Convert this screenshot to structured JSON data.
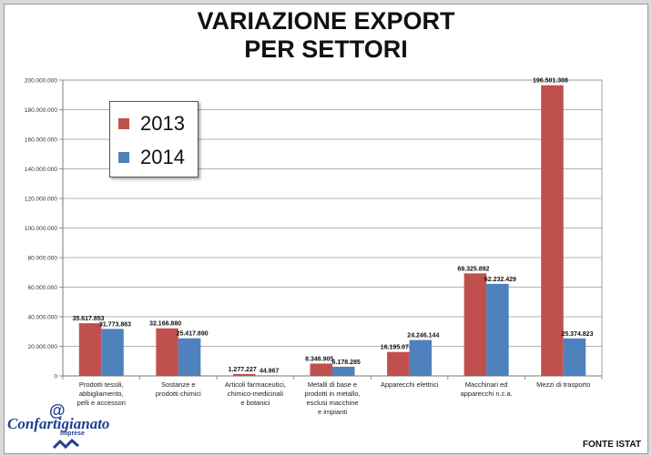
{
  "title_line1": "VARIAZIONE EXPORT",
  "title_line2": "PER SETTORI",
  "source": "FONTE ISTAT",
  "logo": {
    "at": "@",
    "name": "Confartigianato",
    "sub": "Imprese"
  },
  "colors": {
    "s2013": "#c0504d",
    "s2014": "#4f81bd"
  },
  "chart_data": {
    "type": "bar",
    "title": "VARIAZIONE EXPORT PER SETTORI",
    "ylim": [
      0,
      200000000
    ],
    "yticks": [
      0,
      20000000,
      40000000,
      60000000,
      80000000,
      100000000,
      120000000,
      140000000,
      160000000,
      180000000,
      200000000
    ],
    "ytick_labels": [
      "0",
      "20.000.000",
      "40.000.000",
      "60.000.000",
      "80.000.000",
      "100.000.000",
      "120.000.000",
      "140.000.000",
      "160.000.000",
      "180.000.000",
      "200.000.000"
    ],
    "grid": true,
    "legend_position": "top-left",
    "categories": [
      [
        "Prodotti tessili,",
        "abbigliamento,",
        "pelli e accessori"
      ],
      [
        "Sostanze e",
        "prodotti chimici"
      ],
      [
        "Articoli farmaceutici,",
        "chimico-medicinali",
        "e botanici"
      ],
      [
        "Metalli di base e",
        "prodotti in metallo,",
        "esclusi macchine",
        "e impianti"
      ],
      [
        "Apparecchi elettrici"
      ],
      [
        "Macchinari ed",
        "apparecchi n.c.a."
      ],
      [
        "Mezzi di trasporto"
      ]
    ],
    "series": [
      {
        "name": "2013",
        "values": [
          35617853,
          32166880,
          1277227,
          8346905,
          16195074,
          69325892,
          196501308
        ],
        "labels": [
          "35.617.853",
          "32.166.880",
          "1.277.227",
          "8.346.905",
          "16.195.074",
          "69.325.892",
          "196.501.308"
        ]
      },
      {
        "name": "2014",
        "values": [
          31773863,
          25417890,
          44967,
          6178285,
          24246144,
          62232429,
          25374823
        ],
        "labels": [
          "31.773.863",
          "25.417.890",
          "44.967",
          "6.178.285",
          "24.246.144",
          "62.232.429",
          "25.374.823"
        ]
      }
    ]
  }
}
